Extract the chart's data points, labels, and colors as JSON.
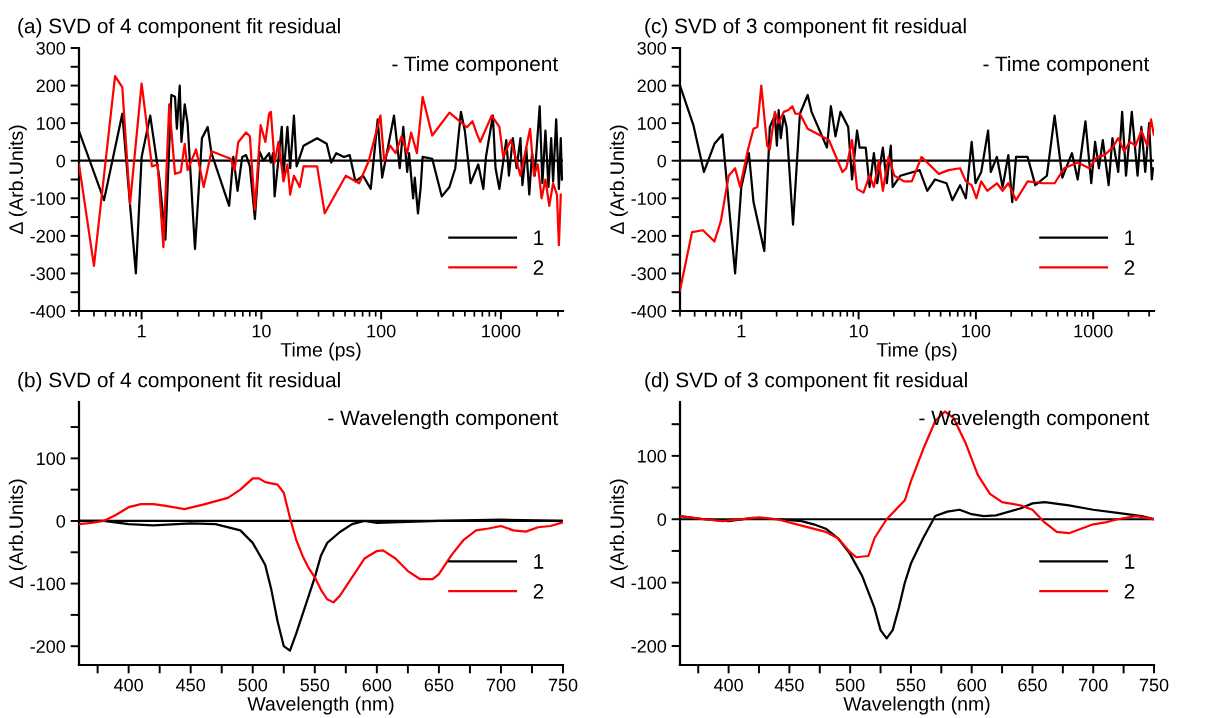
{
  "chart_data": [
    {
      "type": "line",
      "title": "(a) SVD of 4 component fit residual",
      "subtitle": "- Time component",
      "xlabel": "Time (ps)",
      "ylabel": "Δ (Arb.Units)",
      "log": "x",
      "legend": "bottom right",
      "grid": false,
      "xlim": [
        0.3,
        3300
      ],
      "xticks": [
        1,
        10,
        100,
        1000
      ],
      "ylim": [
        -400,
        300
      ],
      "yticks": [
        -400,
        {
          "value": -350,
          "label": null
        },
        -300,
        {
          "value": -250,
          "label": null
        },
        -200,
        {
          "value": -150,
          "label": null
        },
        -100,
        {
          "value": -50,
          "label": null
        },
        0,
        {
          "value": 50,
          "label": null
        },
        100,
        {
          "value": 150,
          "label": null
        },
        200,
        {
          "value": 250,
          "label": null
        },
        300
      ],
      "ref_lines": [
        {
          "axis": "y",
          "value": 0,
          "color": "#000000"
        }
      ],
      "series": [
        {
          "name": "1",
          "color": "#000000",
          "x": [
            0.3,
            0.485,
            0.69,
            0.895,
            1.0,
            1.18,
            1.41,
            1.58,
            1.77,
            1.9,
            1.97,
            2.08,
            2.15,
            2.29,
            2.42,
            2.79,
            3.19,
            3.56,
            3.83,
            5.38,
            5.83,
            6.33,
            6.92,
            7.45,
            8.01,
            8.83,
            9.64,
            10.4,
            11.6,
            12.0,
            12.5,
            12.9,
            14.8,
            15.3,
            16.5,
            17.4,
            18.7,
            19.7,
            22.5,
            29.2,
            35.1,
            38.3,
            42.2,
            48.9,
            54.6,
            61.0,
            70.7,
            81.9,
            93.6,
            102,
            128,
            143,
            153,
            165,
            171,
            185,
            191,
            203,
            214,
            222,
            267,
            321,
            372,
            416,
            464,
            500,
            558,
            647,
            713,
            750,
            857,
            902,
            971,
            1109,
            1167,
            1257,
            1353,
            1457,
            1512,
            1628,
            1726,
            1820,
            1915,
            2108,
            2220,
            2354,
            2496,
            2629,
            2728,
            2895,
            3050,
            3162,
            3234
          ],
          "values": [
            79,
            -105,
            125,
            -300,
            10,
            120,
            -50,
            -210,
            175,
            170,
            85,
            200,
            50,
            150,
            100,
            -235,
            60,
            90,
            20,
            -120,
            10,
            -80,
            10,
            15,
            -15,
            -155,
            25,
            0,
            20,
            -5,
            20,
            -95,
            90,
            -40,
            90,
            -20,
            120,
            -15,
            40,
            60,
            45,
            -5,
            20,
            10,
            15,
            -55,
            -40,
            -75,
            110,
            -45,
            120,
            -20,
            90,
            -30,
            20,
            -100,
            -45,
            -140,
            -70,
            10,
            5,
            -95,
            -70,
            -20,
            130,
            80,
            -60,
            -10,
            -75,
            10,
            120,
            -20,
            -75,
            55,
            -40,
            60,
            -20,
            60,
            -65,
            35,
            -90,
            20,
            -40,
            145,
            -60,
            80,
            -70,
            60,
            -55,
            110,
            -75,
            60,
            -50
          ]
        },
        {
          "name": "2",
          "color": "#ff0000",
          "x": [
            0.3,
            0.4,
            0.6,
            0.69,
            0.8,
            1.0,
            1.22,
            1.36,
            1.52,
            1.7,
            1.9,
            2.12,
            2.29,
            2.42,
            2.85,
            3.3,
            3.83,
            5.54,
            5.97,
            6.42,
            7.45,
            8.01,
            8.83,
            9.86,
            10.8,
            11.6,
            12.0,
            12.9,
            13.9,
            15.3,
            16.5,
            17.4,
            18.7,
            20.9,
            22.5,
            29.2,
            33.8,
            50.7,
            65.6,
            78.9,
            98.6,
            106,
            119,
            132,
            148,
            165,
            178,
            199,
            222,
            267,
            372,
            519,
            579,
            625,
            671,
            838,
            971,
            1045,
            1211,
            1457,
            1753,
            1888,
            2032,
            2188,
            2354,
            2535,
            2728,
            2938,
            3050,
            3162
          ],
          "values": [
            -10,
            -280,
            225,
            195,
            -115,
            205,
            -15,
            -10,
            -230,
            150,
            -35,
            -30,
            45,
            -25,
            30,
            -70,
            25,
            5,
            -25,
            50,
            75,
            65,
            -130,
            95,
            50,
            125,
            130,
            -5,
            50,
            -55,
            -10,
            -90,
            -40,
            -70,
            -15,
            -15,
            -140,
            -40,
            -60,
            0,
            120,
            0,
            40,
            20,
            65,
            20,
            75,
            20,
            170,
            67,
            128,
            89,
            105,
            75,
            50,
            120,
            90,
            10,
            55,
            -40,
            85,
            -40,
            -10,
            -100,
            -50,
            -120,
            -60,
            -90,
            -225,
            -90
          ]
        }
      ]
    },
    {
      "type": "line",
      "title": "(c) SVD of 3 component fit residual",
      "subtitle": "- Time component",
      "xlabel": "Time (ps)",
      "ylabel": "Δ (Arb.Units)",
      "log": "x",
      "legend": "bottom right",
      "grid": false,
      "xlim": [
        0.3,
        3300
      ],
      "xticks": [
        1,
        10,
        100,
        1000
      ],
      "ylim": [
        -400,
        300
      ],
      "yticks": [
        -400,
        {
          "value": -350,
          "label": null
        },
        -300,
        {
          "value": -250,
          "label": null
        },
        -200,
        {
          "value": -150,
          "label": null
        },
        -100,
        {
          "value": -50,
          "label": null
        },
        0,
        {
          "value": 50,
          "label": null
        },
        100,
        {
          "value": 150,
          "label": null
        },
        200,
        {
          "value": 250,
          "label": null
        },
        300
      ],
      "ref_lines": [
        {
          "axis": "y",
          "value": 0,
          "color": "#000000"
        }
      ],
      "series": [
        {
          "name": "1",
          "color": "#000000",
          "x": [
            0.3,
            0.39,
            0.48,
            0.59,
            0.69,
            0.885,
            1.0,
            1.16,
            1.27,
            1.57,
            1.75,
            1.93,
            2.01,
            2.08,
            2.17,
            2.3,
            2.43,
            2.76,
            3.16,
            3.68,
            3.97,
            5.37,
            5.8,
            6.35,
            7.0,
            8.15,
            8.79,
            9.7,
            10.2,
            11.5,
            12.4,
            13.5,
            14.4,
            16.1,
            17.4,
            18.8,
            19.5,
            22.7,
            33.1,
            38.5,
            44.8,
            56.2,
            63.0,
            73.3,
            82.1,
            92.0,
            99.3,
            111,
            127,
            134,
            151,
            169,
            189,
            204,
            220,
            276,
            321,
            403,
            469,
            546,
            659,
            738,
            859,
            963,
            1038,
            1119,
            1208,
            1354,
            1459,
            1636,
            1766,
            1905,
            2134,
            2390,
            2576,
            2780,
            2999,
            3162,
            3236
          ],
          "values": [
            200,
            95,
            -30,
            45,
            70,
            -300,
            -70,
            20,
            -110,
            -240,
            90,
            120,
            40,
            135,
            60,
            120,
            90,
            -170,
            125,
            175,
            130,
            35,
            145,
            65,
            130,
            90,
            -50,
            80,
            35,
            35,
            -70,
            20,
            -60,
            35,
            -60,
            40,
            -70,
            -40,
            -25,
            -80,
            -50,
            -60,
            -105,
            -65,
            -100,
            50,
            -60,
            -30,
            80,
            -30,
            10,
            -70,
            15,
            -110,
            10,
            10,
            -65,
            -40,
            120,
            -45,
            20,
            -50,
            105,
            -60,
            50,
            -20,
            55,
            -65,
            60,
            -30,
            130,
            -40,
            130,
            -40,
            90,
            -30,
            100,
            -50,
            -20
          ]
        },
        {
          "name": "2",
          "color": "#ff0000",
          "x": [
            0.3,
            0.38,
            0.47,
            0.59,
            0.67,
            0.78,
            0.885,
            0.977,
            1.14,
            1.27,
            1.37,
            1.48,
            1.66,
            1.75,
            1.93,
            2.08,
            2.3,
            2.52,
            2.72,
            2.89,
            3.16,
            3.68,
            5.58,
            7.28,
            7.85,
            8.79,
            9.7,
            11.0,
            12.4,
            13.5,
            14.9,
            16.1,
            18.0,
            20.2,
            24.4,
            28.4,
            34.4,
            48.3,
            58.4,
            73.3,
            82.1,
            92.0,
            101,
            111,
            125,
            151,
            169,
            189,
            220,
            276,
            373,
            469,
            566,
            738,
            927,
            1079,
            1256,
            1459,
            1636,
            1833,
            2055,
            2301,
            2576,
            2888,
            3114,
            3284
          ],
          "values": [
            -345,
            -190,
            -185,
            -215,
            -160,
            -40,
            -20,
            -70,
            30,
            85,
            90,
            200,
            40,
            30,
            130,
            100,
            130,
            135,
            145,
            125,
            125,
            85,
            55,
            -30,
            -20,
            55,
            -75,
            -85,
            -40,
            -70,
            0,
            -80,
            10,
            -40,
            -55,
            -55,
            10,
            -35,
            -25,
            -20,
            -55,
            -65,
            -100,
            -55,
            -80,
            -60,
            -80,
            -60,
            -105,
            -55,
            -60,
            -60,
            -20,
            -5,
            -20,
            10,
            15,
            35,
            60,
            25,
            50,
            40,
            80,
            40,
            110,
            70
          ]
        }
      ]
    },
    {
      "type": "line",
      "title": "(b) SVD of 4 component fit residual",
      "subtitle": "- Wavelength component",
      "xlabel": "Wavelength (nm)",
      "ylabel": "Δ (Arb.Units)",
      "legend": "right",
      "grid": false,
      "xlim": [
        360,
        750
      ],
      "xticks": [
        {
          "value": 375,
          "label": null
        },
        400,
        {
          "value": 425,
          "label": null
        },
        450,
        {
          "value": 475,
          "label": null
        },
        500,
        {
          "value": 525,
          "label": null
        },
        550,
        {
          "value": 575,
          "label": null
        },
        600,
        {
          "value": 625,
          "label": null
        },
        650,
        {
          "value": 675,
          "label": null
        },
        700,
        {
          "value": 725,
          "label": null
        },
        750
      ],
      "ylim": [
        -230,
        190
      ],
      "yticks": [
        -200,
        {
          "value": -150,
          "label": null
        },
        -100,
        {
          "value": -50,
          "label": null
        },
        0,
        {
          "value": 50,
          "label": null
        },
        100,
        {
          "value": 150,
          "label": null
        }
      ],
      "ref_lines": [
        {
          "axis": "y",
          "value": 0,
          "color": "#000000"
        }
      ],
      "series": [
        {
          "name": "1",
          "color": "#000000",
          "x": [
            360,
            380,
            400,
            420,
            450,
            470,
            490,
            500,
            510,
            515,
            520,
            525,
            530,
            535,
            540,
            545,
            550,
            555,
            560,
            570,
            580,
            590,
            600,
            650,
            700,
            750
          ],
          "values": [
            0,
            0,
            -5,
            -7,
            -4,
            -5,
            -15,
            -35,
            -70,
            -110,
            -160,
            -200,
            -207,
            -180,
            -150,
            -120,
            -90,
            -55,
            -35,
            -18,
            -5,
            0,
            -3,
            0,
            2,
            0
          ]
        },
        {
          "name": "2",
          "color": "#ff0000",
          "x": [
            360,
            370,
            380,
            390,
            400,
            410,
            420,
            430,
            445,
            460,
            480,
            490,
            500,
            505,
            510,
            520,
            525,
            530,
            535,
            540,
            545,
            550,
            555,
            560,
            565,
            570,
            580,
            590,
            600,
            605,
            615,
            625,
            635,
            645,
            650,
            660,
            670,
            680,
            690,
            700,
            710,
            720,
            730,
            740,
            750
          ],
          "values": [
            -5,
            -3,
            0,
            10,
            22,
            27,
            27,
            24,
            19,
            26,
            37,
            50,
            68,
            68,
            62,
            58,
            45,
            5,
            -30,
            -55,
            -75,
            -90,
            -110,
            -125,
            -130,
            -120,
            -90,
            -60,
            -48,
            -47,
            -60,
            -80,
            -93,
            -93,
            -85,
            -55,
            -30,
            -15,
            -12,
            -8,
            -15,
            -17,
            -10,
            -8,
            -2
          ]
        }
      ]
    },
    {
      "type": "line",
      "title": "(d) SVD of 3 component fit residual",
      "subtitle": "- Wavelength component",
      "xlabel": "Wavelength (nm)",
      "ylabel": "Δ (Arb.Units)",
      "legend": "right",
      "grid": false,
      "xlim": [
        360,
        750
      ],
      "xticks": [
        {
          "value": 375,
          "label": null
        },
        400,
        {
          "value": 425,
          "label": null
        },
        450,
        {
          "value": 475,
          "label": null
        },
        500,
        {
          "value": 525,
          "label": null
        },
        550,
        {
          "value": 575,
          "label": null
        },
        600,
        {
          "value": 625,
          "label": null
        },
        650,
        {
          "value": 675,
          "label": null
        },
        700,
        {
          "value": 725,
          "label": null
        },
        750
      ],
      "ylim": [
        -230,
        185
      ],
      "yticks": [
        -200,
        {
          "value": -150,
          "label": null
        },
        -100,
        {
          "value": -50,
          "label": null
        },
        0,
        {
          "value": 50,
          "label": null
        },
        100,
        {
          "value": 150,
          "label": null
        }
      ],
      "ref_lines": [
        {
          "axis": "y",
          "value": 0,
          "color": "#000000"
        }
      ],
      "series": [
        {
          "name": "1",
          "color": "#000000",
          "x": [
            360,
            380,
            400,
            420,
            440,
            460,
            470,
            480,
            490,
            500,
            510,
            520,
            525,
            530,
            535,
            540,
            545,
            550,
            560,
            570,
            580,
            590,
            600,
            610,
            620,
            640,
            650,
            660,
            680,
            700,
            720,
            740,
            750
          ],
          "values": [
            5,
            0,
            -3,
            2,
            0,
            -3,
            -8,
            -15,
            -30,
            -55,
            -90,
            -140,
            -175,
            -188,
            -175,
            -140,
            -100,
            -70,
            -30,
            5,
            12,
            15,
            8,
            5,
            6,
            17,
            25,
            27,
            22,
            15,
            10,
            5,
            0
          ]
        },
        {
          "name": "2",
          "color": "#ff0000",
          "x": [
            360,
            380,
            395,
            410,
            425,
            440,
            460,
            480,
            490,
            500,
            505,
            515,
            520,
            530,
            540,
            545,
            550,
            560,
            570,
            578,
            585,
            595,
            605,
            615,
            625,
            640,
            650,
            660,
            670,
            680,
            690,
            700,
            710,
            720,
            735,
            750
          ],
          "values": [
            5,
            0,
            -3,
            0,
            3,
            0,
            -10,
            -20,
            -30,
            -52,
            -60,
            -58,
            -30,
            0,
            20,
            30,
            60,
            110,
            155,
            170,
            160,
            120,
            70,
            40,
            27,
            22,
            15,
            -5,
            -20,
            -22,
            -15,
            -8,
            -5,
            0,
            5,
            0
          ]
        }
      ]
    }
  ]
}
